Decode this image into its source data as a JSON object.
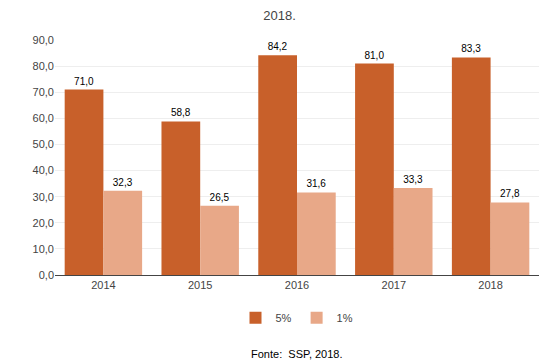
{
  "chart_data": {
    "type": "bar",
    "title": "2018.",
    "annotations": [
      "Fonte:  SSP, 2018."
    ],
    "categories": [
      "2014",
      "2015",
      "2016",
      "2017",
      "2018"
    ],
    "series": [
      {
        "name": "5%",
        "color": "#C8602A",
        "values": [
          71.0,
          58.8,
          84.2,
          81.0,
          83.3
        ],
        "value_labels": [
          "71,0",
          "58,8",
          "84,2",
          "81,0",
          "83,3"
        ]
      },
      {
        "name": "1%",
        "color": "#E8A888",
        "values": [
          32.3,
          26.5,
          31.6,
          33.3,
          27.8
        ],
        "value_labels": [
          "32,3",
          "26,5",
          "31,6",
          "33,3",
          "27,8"
        ]
      }
    ],
    "ylim": [
      0,
      90
    ],
    "yticks": [
      {
        "value": 0,
        "label": "0,0"
      },
      {
        "value": 10,
        "label": "10,0"
      },
      {
        "value": 20,
        "label": "20,0"
      },
      {
        "value": 30,
        "label": "30,0"
      },
      {
        "value": 40,
        "label": "40,0"
      },
      {
        "value": 50,
        "label": "50,0"
      },
      {
        "value": 60,
        "label": "60,0"
      },
      {
        "value": 70,
        "label": "70,0"
      },
      {
        "value": 80,
        "label": "80,0"
      },
      {
        "value": 90,
        "label": "90,0"
      }
    ],
    "grid": true,
    "legend": "bottom",
    "data_labels": true
  }
}
